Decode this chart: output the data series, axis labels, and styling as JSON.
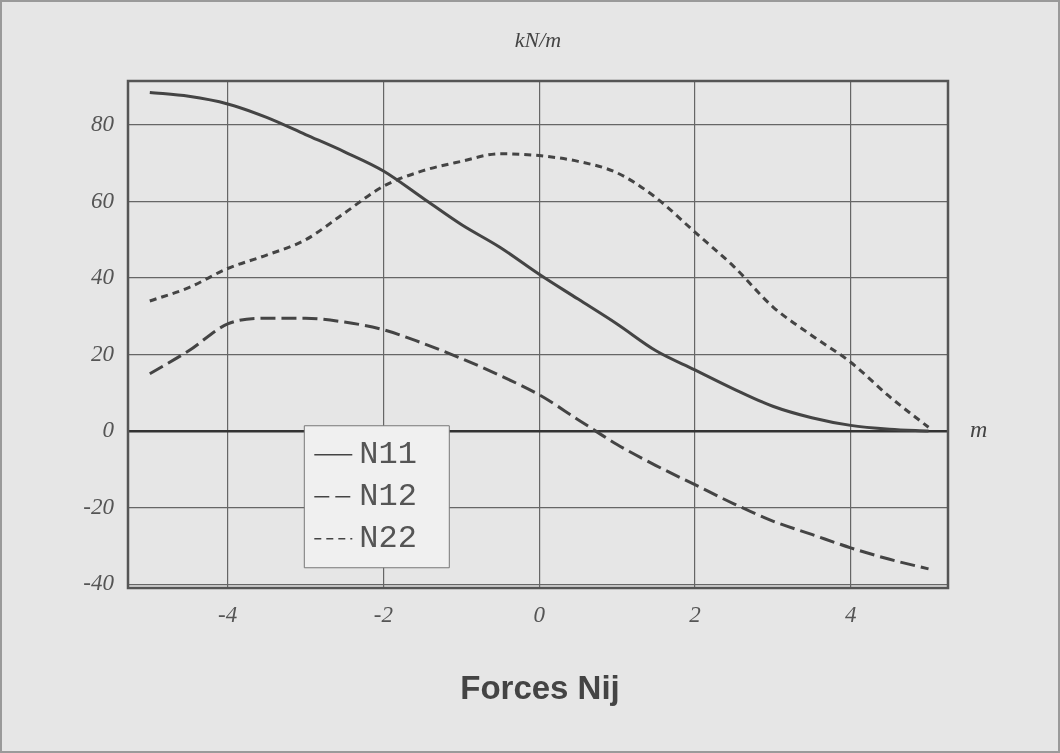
{
  "chart_data": {
    "type": "line",
    "title": "Forces Nij",
    "xlabel": "m",
    "ylabel": "kN/m",
    "x": [
      -5,
      -4.5,
      -4,
      -3.5,
      -3,
      -2.5,
      -2,
      -1.5,
      -1,
      -0.5,
      0,
      0.5,
      1,
      1.5,
      2,
      2.5,
      3,
      3.5,
      4,
      4.5,
      5
    ],
    "series": [
      {
        "name": "N11",
        "color": "#444444",
        "line_style": "solid",
        "values": [
          88.5,
          87.5,
          85.5,
          82,
          77.5,
          73,
          68,
          61,
          54,
          48,
          41,
          34.5,
          28,
          21,
          16,
          11,
          6.5,
          3.5,
          1.5,
          0.5,
          0
        ]
      },
      {
        "name": "N12",
        "color": "#444444",
        "line_style": "dashed",
        "values": [
          15,
          21,
          28,
          29.5,
          29.5,
          28.5,
          26.5,
          23,
          19,
          14.5,
          9.5,
          3,
          -3.5,
          -9,
          -14,
          -19,
          -23.5,
          -27,
          -30.5,
          -33.5,
          -36
        ]
      },
      {
        "name": "N22",
        "color": "#444444",
        "line_style": "dotted",
        "values": [
          34,
          37.5,
          42.5,
          46,
          50,
          57,
          64,
          68,
          70.5,
          72.5,
          72,
          70.5,
          67.5,
          61,
          52,
          43,
          32.5,
          25,
          18,
          9,
          1
        ]
      }
    ],
    "xlim": [
      -5.28,
      5.25
    ],
    "ylim": [
      -41,
      91.5
    ],
    "xticks": [
      -4,
      -2,
      0,
      2,
      4
    ],
    "yticks": [
      -40,
      -20,
      0,
      20,
      40,
      60,
      80
    ],
    "grid": true,
    "legend": "bottom left",
    "marker": "none"
  }
}
